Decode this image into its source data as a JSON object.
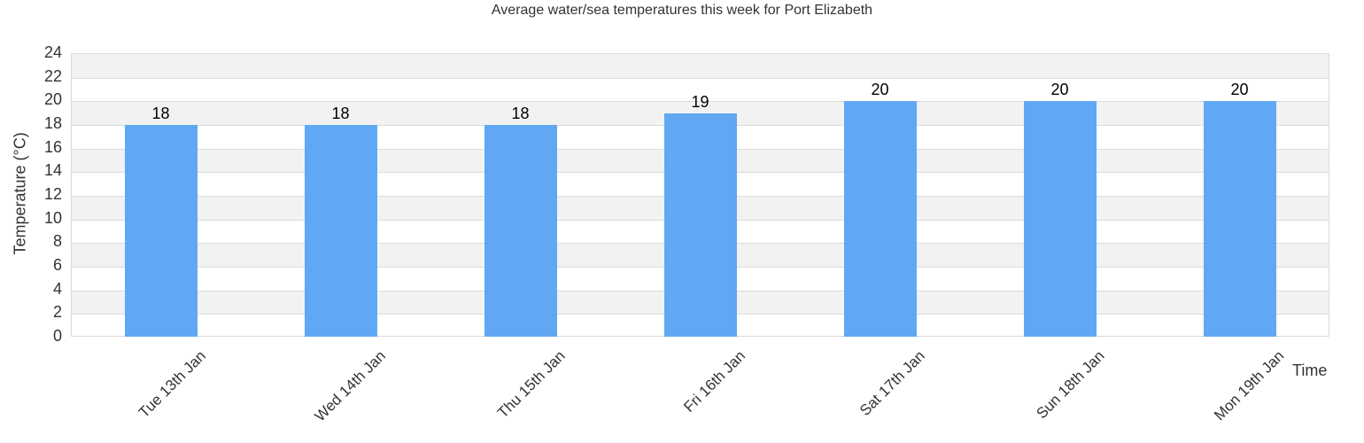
{
  "chart_data": {
    "type": "bar",
    "title": "Average water/sea temperatures this week for Port Elizabeth",
    "xlabel": "Time",
    "ylabel": "Temperature (°C)",
    "categories": [
      "Tue 13th Jan",
      "Wed 14th Jan",
      "Thu 15th Jan",
      "Fri 16th Jan",
      "Sat 17th Jan",
      "Sun 18th Jan",
      "Mon 19th Jan"
    ],
    "values": [
      18,
      18,
      18,
      19,
      20,
      20,
      20
    ],
    "data_labels": [
      "18",
      "18",
      "18",
      "19",
      "20",
      "20",
      "20"
    ],
    "ylim": [
      0,
      24
    ],
    "yticks": [
      "0",
      "2",
      "4",
      "6",
      "8",
      "10",
      "12",
      "14",
      "16",
      "18",
      "20",
      "22",
      "24"
    ],
    "grid": true,
    "legend": "none",
    "bar_color": "#60a8f4",
    "band_colors": [
      "#ffffff",
      "#f2f2f2"
    ]
  }
}
